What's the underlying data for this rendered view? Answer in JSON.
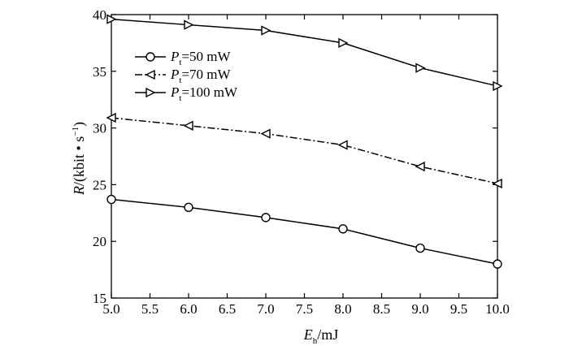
{
  "chart_data": {
    "type": "line",
    "x": [
      5.0,
      6.0,
      7.0,
      8.0,
      9.0,
      10.0
    ],
    "xlim": [
      5.0,
      10.0
    ],
    "ylim": [
      15,
      40
    ],
    "xticks": [
      "5.0",
      "5.5",
      "6.0",
      "6.5",
      "7.0",
      "7.5",
      "8.0",
      "8.5",
      "9.0",
      "9.5",
      "10.0"
    ],
    "yticks": [
      "15",
      "20",
      "25",
      "30",
      "35",
      "40"
    ],
    "xlabel": {
      "main": "E",
      "sub": "h",
      "unit": "/mJ"
    },
    "ylabel": {
      "main": "R",
      "unit": "/(kbit • s",
      "sup": "−1",
      "close": ")"
    },
    "legend_position": "upper-left",
    "grid": false,
    "series": [
      {
        "name": "Pt=50 mW",
        "legend": {
          "main": "P",
          "sub": "t",
          "rest": "=50 mW"
        },
        "marker": "circle",
        "line": "solid",
        "values": [
          23.7,
          23.0,
          22.1,
          21.1,
          19.4,
          18.0
        ]
      },
      {
        "name": "Pt=70 mW",
        "legend": {
          "main": "P",
          "sub": "t",
          "rest": "=70 mW"
        },
        "marker": "triangle-left",
        "line": "dashdot",
        "values": [
          30.9,
          30.2,
          29.5,
          28.5,
          26.6,
          25.1
        ]
      },
      {
        "name": "Pt=100 mW",
        "legend": {
          "main": "P",
          "sub": "t",
          "rest": "=100 mW"
        },
        "marker": "triangle-right",
        "line": "solid",
        "values": [
          39.6,
          39.1,
          38.6,
          37.5,
          35.3,
          33.7
        ]
      }
    ]
  }
}
